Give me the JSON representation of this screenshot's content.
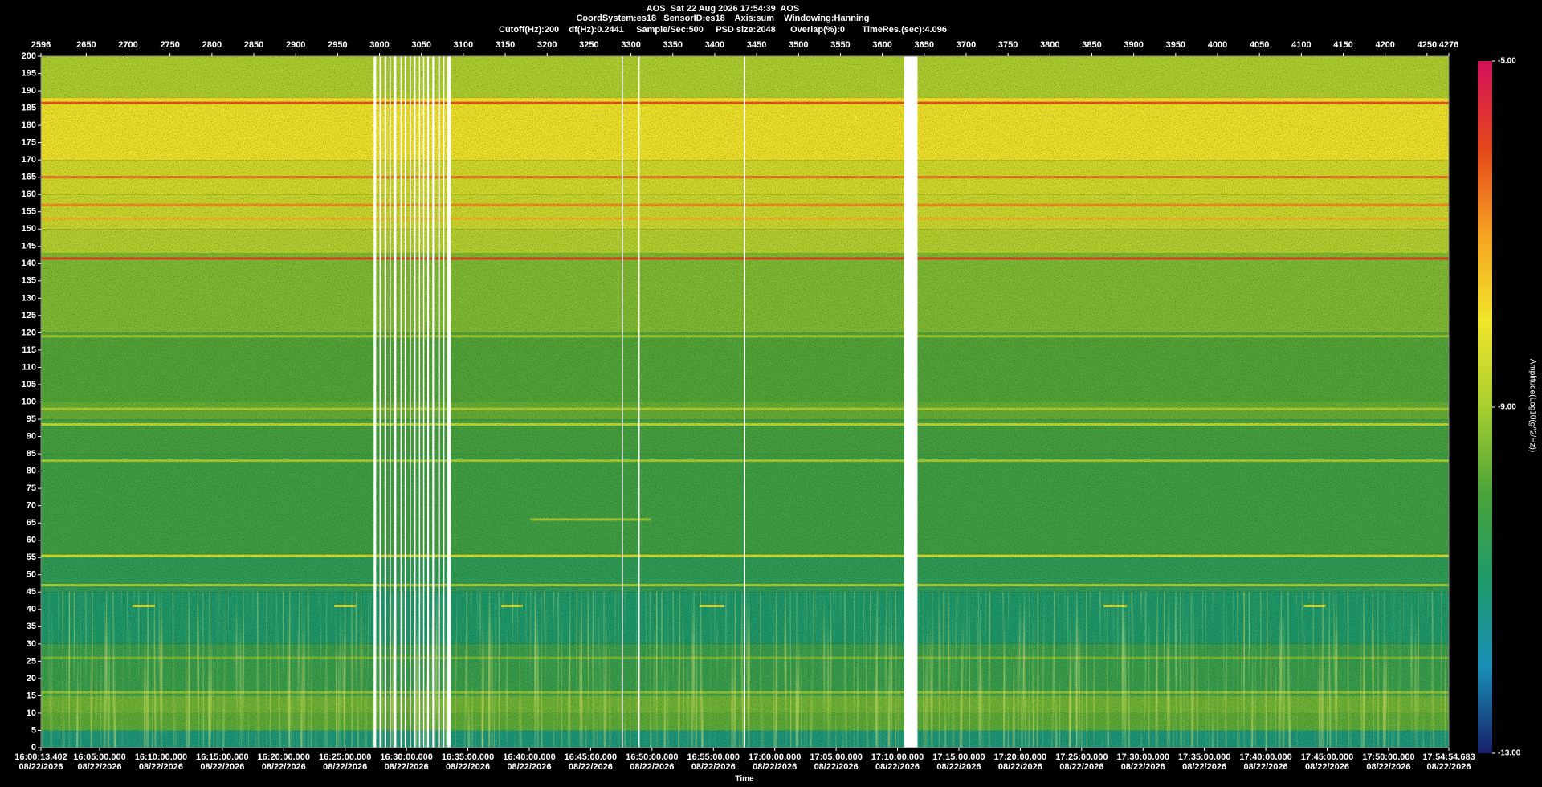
{
  "chart_data": {
    "type": "spectrogram",
    "title": "AOS  Sat 22 Aug 2026 17:54:39  AOS",
    "subtitle": [
      "CoordSystem:es18   SensorID:es18    Axis:sum    Windowing:Hanning",
      "Cutoff(Hz):200    df(Hz):0.2441     Sample/Sec:500     PSD size:2048      Overlap(%):0       TimeRes.(sec):4.096"
    ],
    "xlabel": "Time",
    "xlim": [
      2596,
      4276
    ],
    "xticks": [
      2596,
      2650,
      2700,
      2750,
      2800,
      2850,
      2900,
      2950,
      3000,
      3050,
      3100,
      3150,
      3200,
      3250,
      3300,
      3350,
      3400,
      3450,
      3500,
      3550,
      3600,
      3650,
      3700,
      3750,
      3800,
      3850,
      3900,
      3950,
      4000,
      4050,
      4100,
      4150,
      4200,
      4250,
      4276
    ],
    "x2lim": [
      57613.402,
      64494.683
    ],
    "x2ticks": [
      {
        "value": 57613.402,
        "label": "16:00:13.402",
        "date": "08/22/2026"
      },
      {
        "value": 57900,
        "label": "16:05:00.000",
        "date": "08/22/2026"
      },
      {
        "value": 58200,
        "label": "16:10:00.000",
        "date": "08/22/2026"
      },
      {
        "value": 58500,
        "label": "16:15:00.000",
        "date": "08/22/2026"
      },
      {
        "value": 58800,
        "label": "16:20:00.000",
        "date": "08/22/2026"
      },
      {
        "value": 59100,
        "label": "16:25:00.000",
        "date": "08/22/2026"
      },
      {
        "value": 59400,
        "label": "16:30:00.000",
        "date": "08/22/2026"
      },
      {
        "value": 59700,
        "label": "16:35:00.000",
        "date": "08/22/2026"
      },
      {
        "value": 60000,
        "label": "16:40:00.000",
        "date": "08/22/2026"
      },
      {
        "value": 60300,
        "label": "16:45:00.000",
        "date": "08/22/2026"
      },
      {
        "value": 60600,
        "label": "16:50:00.000",
        "date": "08/22/2026"
      },
      {
        "value": 60900,
        "label": "16:55:00.000",
        "date": "08/22/2026"
      },
      {
        "value": 61200,
        "label": "17:00:00.000",
        "date": "08/22/2026"
      },
      {
        "value": 61500,
        "label": "17:05:00.000",
        "date": "08/22/2026"
      },
      {
        "value": 61800,
        "label": "17:10:00.000",
        "date": "08/22/2026"
      },
      {
        "value": 62100,
        "label": "17:15:00.000",
        "date": "08/22/2026"
      },
      {
        "value": 62400,
        "label": "17:20:00.000",
        "date": "08/22/2026"
      },
      {
        "value": 62700,
        "label": "17:25:00.000",
        "date": "08/22/2026"
      },
      {
        "value": 63000,
        "label": "17:30:00.000",
        "date": "08/22/2026"
      },
      {
        "value": 63300,
        "label": "17:35:00.000",
        "date": "08/22/2026"
      },
      {
        "value": 63600,
        "label": "17:40:00.000",
        "date": "08/22/2026"
      },
      {
        "value": 63900,
        "label": "17:45:00.000",
        "date": "08/22/2026"
      },
      {
        "value": 64200,
        "label": "17:50:00.000",
        "date": "08/22/2026"
      },
      {
        "value": 64494.683,
        "label": "17:54:54.683",
        "date": "08/22/2026"
      }
    ],
    "ylim": [
      0,
      200
    ],
    "yticks": [
      0,
      5,
      10,
      15,
      20,
      25,
      30,
      35,
      40,
      45,
      50,
      55,
      60,
      65,
      70,
      75,
      80,
      85,
      90,
      95,
      100,
      105,
      110,
      115,
      120,
      125,
      130,
      135,
      140,
      145,
      150,
      155,
      160,
      165,
      170,
      175,
      180,
      185,
      190,
      195,
      200
    ],
    "bands": [
      {
        "from": 188,
        "to": 200,
        "value": -8.9
      },
      {
        "from": 170,
        "to": 188,
        "value": -8.0
      },
      {
        "from": 160,
        "to": 170,
        "value": -8.4
      },
      {
        "from": 150,
        "to": 160,
        "value": -8.5
      },
      {
        "from": 143,
        "to": 150,
        "value": -8.8
      },
      {
        "from": 120,
        "to": 143,
        "value": -9.4
      },
      {
        "from": 100,
        "to": 120,
        "value": -9.9
      },
      {
        "from": 95,
        "to": 100,
        "value": -9.7
      },
      {
        "from": 85,
        "to": 95,
        "value": -10.1
      },
      {
        "from": 56,
        "to": 85,
        "value": -10.2
      },
      {
        "from": 45,
        "to": 56,
        "value": -10.6
      },
      {
        "from": 30,
        "to": 45,
        "value": -11.0
      },
      {
        "from": 15,
        "to": 30,
        "value": -10.4
      },
      {
        "from": 10,
        "to": 15,
        "value": -9.6
      },
      {
        "from": 5,
        "to": 10,
        "value": -9.8
      },
      {
        "from": 0,
        "to": 5,
        "value": -11.2
      }
    ],
    "tones": [
      {
        "freq": 186.5,
        "value": -6.2
      },
      {
        "freq": 165,
        "value": -6.5
      },
      {
        "freq": 157,
        "value": -6.8
      },
      {
        "freq": 153,
        "value": -7.3
      },
      {
        "freq": 141.5,
        "value": -6.0
      },
      {
        "freq": 119,
        "value": -8.9
      },
      {
        "freq": 98,
        "value": -8.9
      },
      {
        "freq": 93.5,
        "value": -8.6
      },
      {
        "freq": 83,
        "value": -9.0
      },
      {
        "freq": 55.5,
        "value": -8.3
      },
      {
        "freq": 47,
        "value": -8.8
      },
      {
        "freq": 26,
        "value": -9.5
      },
      {
        "freq": 16,
        "value": -9.2
      }
    ],
    "segments": [
      {
        "freq": 41,
        "value": -8.4,
        "x": [
          2705,
          2732
        ]
      },
      {
        "freq": 41,
        "value": -8.4,
        "x": [
          2946,
          2972
        ]
      },
      {
        "freq": 41,
        "value": -8.4,
        "x": [
          3145,
          3171
        ]
      },
      {
        "freq": 41,
        "value": -8.4,
        "x": [
          3382,
          3411
        ]
      },
      {
        "freq": 41,
        "value": -8.4,
        "x": [
          3864,
          3892
        ]
      },
      {
        "freq": 41,
        "value": -8.4,
        "x": [
          4103,
          4129
        ]
      },
      {
        "freq": 66,
        "value": -9.0,
        "x": [
          3180,
          3324
        ]
      }
    ],
    "gaps": [
      [
        2993,
        2996
      ],
      [
        3000,
        3002
      ],
      [
        3006,
        3008
      ],
      [
        3012,
        3013
      ],
      [
        3017,
        3020
      ],
      [
        3025,
        3026
      ],
      [
        3030,
        3032
      ],
      [
        3036,
        3037
      ],
      [
        3041,
        3043
      ],
      [
        3047,
        3048
      ],
      [
        3052,
        3053
      ],
      [
        3057,
        3059
      ],
      [
        3063,
        3066
      ],
      [
        3070,
        3072
      ],
      [
        3076,
        3077
      ],
      [
        3081,
        3085
      ],
      [
        3289,
        3290
      ],
      [
        3309,
        3310
      ],
      [
        3435,
        3436
      ],
      [
        3626,
        3642
      ]
    ],
    "colorbar": {
      "label": "Amplitude(Log10(g^2/Hz))",
      "lim": [
        -13,
        -5
      ],
      "ticks": [
        {
          "value": -5,
          "label": "-5.00"
        },
        {
          "value": -9,
          "label": "-9.00"
        },
        {
          "value": -13,
          "label": "-13.00"
        }
      ],
      "colors": [
        "#17206a",
        "#1a8fb8",
        "#1f9a6a",
        "#4aa33a",
        "#a8cf30",
        "#f2e52a",
        "#f6a322",
        "#e4461c",
        "#d3105a"
      ]
    }
  }
}
